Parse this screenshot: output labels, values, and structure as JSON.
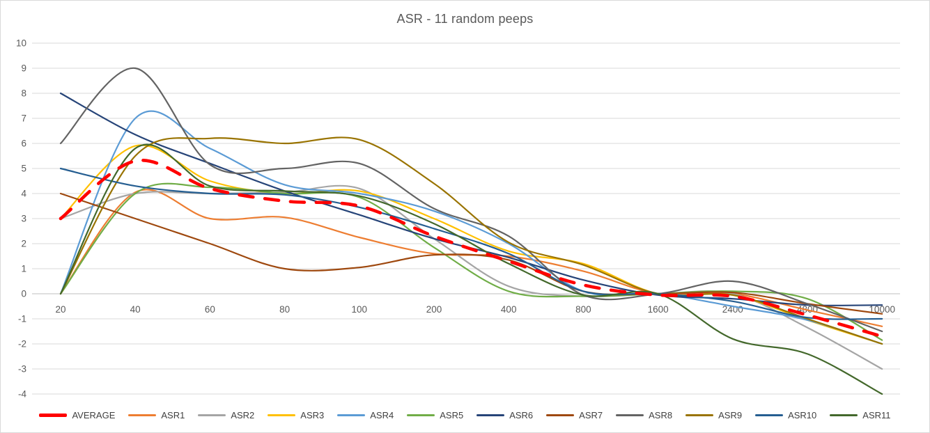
{
  "title": "ASR - 11 random peeps",
  "colors": {
    "gridline": "#D9D9D9",
    "zero_axis": "#BFBFBF",
    "tick_text": "#595959",
    "title_text": "#595959",
    "legend_text": "#404040",
    "background": "#FFFFFF"
  },
  "chart_data": {
    "type": "line",
    "smoothed": true,
    "title": "ASR - 11 random peeps",
    "xlabel": "",
    "ylabel": "",
    "categories": [
      "20",
      "40",
      "60",
      "80",
      "100",
      "200",
      "400",
      "800",
      "1600",
      "2400",
      "4800",
      "10000"
    ],
    "y_ticks": [
      10,
      9,
      8,
      7,
      6,
      5,
      4,
      3,
      2,
      1,
      0,
      -1,
      -2,
      -3,
      -4
    ],
    "ylim": [
      -4,
      10
    ],
    "grid": "horizontal",
    "legend_position": "bottom",
    "series": [
      {
        "name": "AVERAGE",
        "color": "#FF0000",
        "width": 4.6,
        "dash": "20 17",
        "draw_on_top": true,
        "values": [
          3.0,
          5.3,
          4.2,
          3.7,
          3.5,
          2.3,
          1.3,
          0.35,
          -0.05,
          -0.1,
          -0.85,
          -1.7
        ]
      },
      {
        "name": "ASR1",
        "color": "#ED7D31",
        "width": 2.2,
        "values": [
          0.0,
          4.05,
          3.0,
          3.05,
          2.25,
          1.6,
          1.5,
          0.9,
          0.0,
          0.0,
          -0.65,
          -1.3
        ]
      },
      {
        "name": "ASR2",
        "color": "#A5A5A5",
        "width": 2.2,
        "values": [
          3.0,
          4.0,
          4.0,
          4.05,
          4.2,
          2.2,
          0.3,
          -0.1,
          0.0,
          0.0,
          -1.35,
          -3.0
        ]
      },
      {
        "name": "ASR3",
        "color": "#FFC000",
        "width": 2.2,
        "values": [
          3.0,
          5.9,
          4.5,
          4.0,
          4.1,
          3.0,
          1.7,
          1.2,
          0.0,
          -0.05,
          -1.05,
          -2.0
        ]
      },
      {
        "name": "ASR4",
        "color": "#5B9BD5",
        "width": 2.2,
        "values": [
          0.0,
          7.0,
          5.8,
          4.35,
          4.0,
          3.3,
          2.0,
          0.1,
          0.0,
          -0.5,
          -1.05,
          -2.0
        ]
      },
      {
        "name": "ASR5",
        "color": "#70AD47",
        "width": 2.2,
        "values": [
          0.0,
          4.0,
          4.25,
          4.0,
          3.85,
          1.85,
          0.1,
          -0.1,
          0.0,
          0.1,
          -0.2,
          -1.85
        ]
      },
      {
        "name": "ASR6",
        "color": "#264478",
        "width": 2.2,
        "values": [
          8.0,
          6.35,
          5.2,
          4.1,
          3.15,
          2.2,
          1.45,
          0.55,
          -0.05,
          -0.2,
          -0.45,
          -0.45
        ]
      },
      {
        "name": "ASR7",
        "color": "#9E480E",
        "width": 2.2,
        "values": [
          4.0,
          3.0,
          2.0,
          1.0,
          1.05,
          1.55,
          1.35,
          0.1,
          0.0,
          0.05,
          -0.4,
          -0.8
        ]
      },
      {
        "name": "ASR8",
        "color": "#636363",
        "width": 2.2,
        "values": [
          6.0,
          9.0,
          5.15,
          5.0,
          5.2,
          3.4,
          2.3,
          -0.05,
          0.0,
          0.5,
          -0.4,
          -1.5
        ]
      },
      {
        "name": "ASR9",
        "color": "#997300",
        "width": 2.2,
        "values": [
          0.0,
          5.5,
          6.2,
          6.0,
          6.15,
          4.4,
          2.05,
          1.15,
          0.0,
          -0.05,
          -1.0,
          -2.0
        ]
      },
      {
        "name": "ASR10",
        "color": "#255E91",
        "width": 2.2,
        "values": [
          5.0,
          4.3,
          4.0,
          3.95,
          3.45,
          2.6,
          1.6,
          0.1,
          0.0,
          -0.3,
          -0.95,
          -1.0
        ]
      },
      {
        "name": "ASR11",
        "color": "#43682B",
        "width": 2.2,
        "values": [
          0.0,
          5.8,
          4.3,
          4.1,
          3.9,
          2.8,
          1.2,
          -0.05,
          0.0,
          -1.8,
          -2.4,
          -4.0
        ]
      }
    ]
  }
}
